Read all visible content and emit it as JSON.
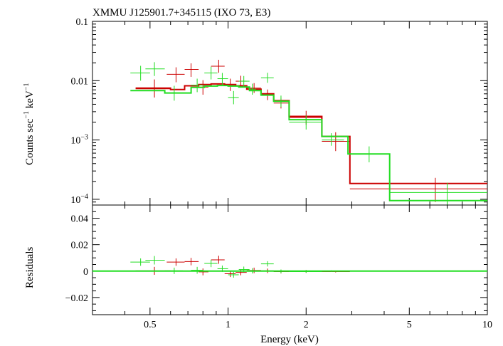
{
  "chart_data": {
    "type": "scatter",
    "title": "XMMU J125901.7+345115 (IXO 73, E3)",
    "x_label": "Energy (keV)",
    "x_scale": "log",
    "x_range": [
      0.3,
      10
    ],
    "x_ticks": [
      {
        "value": 0.5,
        "label": "0.5"
      },
      {
        "value": 1,
        "label": "1"
      },
      {
        "value": 2,
        "label": "2"
      },
      {
        "value": 5,
        "label": "5"
      },
      {
        "value": 10,
        "label": "10"
      }
    ],
    "top_panel": {
      "y_label_main": "Counts sec",
      "y_label_sup1": "−1",
      "y_label_mid": " keV",
      "y_label_sup2": "−1",
      "y_scale": "log",
      "y_range": [
        8e-05,
        0.1
      ],
      "y_ticks": [
        {
          "value": 0.1,
          "label": "0.1"
        },
        {
          "value": 0.01,
          "label": "0.01"
        },
        {
          "value": 0.001,
          "base": "10",
          "exp": "−3"
        },
        {
          "value": 0.0001,
          "base": "10",
          "exp": "−4"
        }
      ]
    },
    "bottom_panel": {
      "y_label": "Residuals",
      "y_scale": "linear",
      "y_range": [
        -0.033,
        0.05
      ],
      "y_ticks": [
        {
          "value": 0.04,
          "label": "0.04"
        },
        {
          "value": 0.02,
          "label": "0.02"
        },
        {
          "value": 0,
          "label": "0"
        },
        {
          "value": -0.02,
          "label": "−0.02"
        }
      ]
    },
    "series": [
      {
        "name": "red",
        "color": "#cc0000",
        "data": [
          {
            "x": 0.52,
            "xlo": 0.44,
            "xhi": 0.6,
            "y": 0.0073,
            "ylo": 0.0052,
            "yhi": 0.0105,
            "res": 0.0002,
            "reslo": -0.0028,
            "reshi": 0.0032
          },
          {
            "x": 0.63,
            "xlo": 0.58,
            "xhi": 0.68,
            "y": 0.0128,
            "ylo": 0.0094,
            "yhi": 0.0168,
            "res": 0.0068,
            "reslo": 0.004,
            "reshi": 0.0096
          },
          {
            "x": 0.72,
            "xlo": 0.68,
            "xhi": 0.77,
            "y": 0.0155,
            "ylo": 0.0116,
            "yhi": 0.0196,
            "res": 0.0072,
            "reslo": 0.0044,
            "reshi": 0.01
          },
          {
            "x": 0.8,
            "xlo": 0.77,
            "xhi": 0.84,
            "y": 0.0078,
            "ylo": 0.0058,
            "yhi": 0.0102,
            "res": -0.0006,
            "reslo": -0.0032,
            "reshi": 0.002
          },
          {
            "x": 0.92,
            "xlo": 0.86,
            "xhi": 0.97,
            "y": 0.0175,
            "ylo": 0.0136,
            "yhi": 0.0225,
            "res": 0.0085,
            "reslo": 0.0055,
            "reshi": 0.0116
          },
          {
            "x": 1.02,
            "xlo": 0.97,
            "xhi": 1.07,
            "y": 0.0085,
            "ylo": 0.0067,
            "yhi": 0.0108,
            "res": -0.002,
            "reslo": -0.0045,
            "reshi": 0.0004
          },
          {
            "x": 1.12,
            "xlo": 1.07,
            "xhi": 1.18,
            "y": 0.0098,
            "ylo": 0.008,
            "yhi": 0.0121,
            "res": -0.001,
            "reslo": -0.0032,
            "reshi": 0.0012
          },
          {
            "x": 1.26,
            "xlo": 1.18,
            "xhi": 1.34,
            "y": 0.0075,
            "ylo": 0.0062,
            "yhi": 0.0091,
            "res": 0.0005,
            "reslo": -0.0016,
            "reshi": 0.0026
          },
          {
            "x": 1.42,
            "xlo": 1.34,
            "xhi": 1.5,
            "y": 0.0058,
            "ylo": 0.0047,
            "yhi": 0.0071,
            "res": 0.0002,
            "reslo": -0.0015,
            "reshi": 0.0019
          },
          {
            "x": 1.6,
            "xlo": 1.5,
            "xhi": 1.72,
            "y": 0.0042,
            "ylo": 0.0034,
            "yhi": 0.0052,
            "res": -0.0004,
            "reslo": -0.0018,
            "reshi": 0.001
          },
          {
            "x": 2.0,
            "xlo": 1.72,
            "xhi": 2.3,
            "y": 0.0024,
            "ylo": 0.0018,
            "yhi": 0.0031,
            "res": -0.0002,
            "reslo": -0.0012,
            "reshi": 0.0008
          },
          {
            "x": 2.6,
            "xlo": 2.3,
            "xhi": 2.95,
            "y": 0.00095,
            "ylo": 0.00065,
            "yhi": 0.00135,
            "res": -0.0004,
            "reslo": -0.001,
            "reshi": 0.0002
          },
          {
            "x": 6.3,
            "xlo": 2.95,
            "xhi": 10.0,
            "y": 0.00015,
            "ylo": 9e-05,
            "yhi": 0.00023,
            "res": 0.0,
            "reslo": -0.0002,
            "reshi": 0.0002
          }
        ],
        "model": [
          {
            "x0": 0.44,
            "x1": 0.6,
            "y": 0.0075
          },
          {
            "x0": 0.6,
            "x1": 0.68,
            "y": 0.0071
          },
          {
            "x0": 0.68,
            "x1": 0.77,
            "y": 0.0082
          },
          {
            "x0": 0.77,
            "x1": 0.86,
            "y": 0.0086
          },
          {
            "x0": 0.86,
            "x1": 0.97,
            "y": 0.0088
          },
          {
            "x0": 0.97,
            "x1": 1.07,
            "y": 0.0086
          },
          {
            "x0": 1.07,
            "x1": 1.18,
            "y": 0.0082
          },
          {
            "x0": 1.18,
            "x1": 1.34,
            "y": 0.0072
          },
          {
            "x0": 1.34,
            "x1": 1.5,
            "y": 0.006
          },
          {
            "x0": 1.5,
            "x1": 1.72,
            "y": 0.0046
          },
          {
            "x0": 1.72,
            "x1": 2.3,
            "y": 0.0025
          },
          {
            "x0": 2.3,
            "x1": 2.95,
            "y": 0.00115
          },
          {
            "x0": 2.95,
            "x1": 10.0,
            "y": 0.000185
          }
        ]
      },
      {
        "name": "green",
        "color": "#22dd22",
        "data": [
          {
            "x": 0.46,
            "xlo": 0.42,
            "xhi": 0.5,
            "y": 0.0135,
            "ylo": 0.01,
            "yhi": 0.0178,
            "res": 0.0068,
            "reslo": 0.004,
            "reshi": 0.0096
          },
          {
            "x": 0.52,
            "xlo": 0.48,
            "xhi": 0.57,
            "y": 0.0158,
            "ylo": 0.012,
            "yhi": 0.0205,
            "res": 0.0082,
            "reslo": 0.005,
            "reshi": 0.0114
          },
          {
            "x": 0.62,
            "xlo": 0.57,
            "xhi": 0.67,
            "y": 0.0062,
            "ylo": 0.0046,
            "yhi": 0.0082,
            "res": 0.0002,
            "reslo": -0.0022,
            "reshi": 0.0026
          },
          {
            "x": 0.76,
            "xlo": 0.72,
            "xhi": 0.8,
            "y": 0.0084,
            "ylo": 0.0064,
            "yhi": 0.0108,
            "res": 0.0006,
            "reslo": -0.002,
            "reshi": 0.0032
          },
          {
            "x": 0.86,
            "xlo": 0.81,
            "xhi": 0.91,
            "y": 0.0135,
            "ylo": 0.0105,
            "yhi": 0.0172,
            "res": 0.0058,
            "reslo": 0.003,
            "reshi": 0.0086
          },
          {
            "x": 0.95,
            "xlo": 0.91,
            "xhi": 1.0,
            "y": 0.0108,
            "ylo": 0.0085,
            "yhi": 0.0135,
            "res": 0.0018,
            "reslo": -0.0006,
            "reshi": 0.0042
          },
          {
            "x": 1.05,
            "xlo": 1.0,
            "xhi": 1.1,
            "y": 0.0052,
            "ylo": 0.004,
            "yhi": 0.0067,
            "res": -0.0028,
            "reslo": -0.005,
            "reshi": -0.0006
          },
          {
            "x": 1.15,
            "xlo": 1.1,
            "xhi": 1.21,
            "y": 0.0098,
            "ylo": 0.008,
            "yhi": 0.012,
            "res": 0.0012,
            "reslo": -0.001,
            "reshi": 0.0034
          },
          {
            "x": 1.24,
            "xlo": 1.2,
            "xhi": 1.28,
            "y": 0.0072,
            "ylo": 0.0058,
            "yhi": 0.0089,
            "res": 0.0002,
            "reslo": -0.0018,
            "reshi": 0.0022
          },
          {
            "x": 1.42,
            "xlo": 1.34,
            "xhi": 1.5,
            "y": 0.0112,
            "ylo": 0.0092,
            "yhi": 0.0136,
            "res": 0.0055,
            "reslo": 0.0035,
            "reshi": 0.0075
          },
          {
            "x": 1.6,
            "xlo": 1.5,
            "xhi": 1.72,
            "y": 0.0045,
            "ylo": 0.0036,
            "yhi": 0.0056,
            "res": -0.0002,
            "reslo": -0.0016,
            "reshi": 0.0012
          },
          {
            "x": 2.0,
            "xlo": 1.72,
            "xhi": 2.3,
            "y": 0.002,
            "ylo": 0.0015,
            "yhi": 0.0026,
            "res": -0.0004,
            "reslo": -0.0014,
            "reshi": 0.0006
          },
          {
            "x": 2.5,
            "xlo": 2.3,
            "xhi": 2.8,
            "y": 0.001,
            "ylo": 0.0008,
            "yhi": 0.0013,
            "res": 0.0,
            "reslo": -0.0006,
            "reshi": 0.0006
          },
          {
            "x": 3.5,
            "xlo": 2.9,
            "xhi": 4.2,
            "y": 0.00058,
            "ylo": 0.00042,
            "yhi": 0.00078,
            "res": 0.0,
            "reslo": -0.0004,
            "reshi": 0.0004
          },
          {
            "x": 7.0,
            "xlo": 4.2,
            "xhi": 10.0,
            "y": 0.00013,
            "ylo": 8e-05,
            "yhi": 0.00019,
            "res": 0.0,
            "reslo": -0.0002,
            "reshi": 0.0002
          }
        ],
        "model": [
          {
            "x0": 0.42,
            "x1": 0.57,
            "y": 0.0068
          },
          {
            "x0": 0.57,
            "x1": 0.72,
            "y": 0.0062
          },
          {
            "x0": 0.72,
            "x1": 0.81,
            "y": 0.0077
          },
          {
            "x0": 0.81,
            "x1": 0.91,
            "y": 0.0081
          },
          {
            "x0": 0.91,
            "x1": 1.0,
            "y": 0.0083
          },
          {
            "x0": 1.0,
            "x1": 1.1,
            "y": 0.0081
          },
          {
            "x0": 1.1,
            "x1": 1.21,
            "y": 0.0078
          },
          {
            "x0": 1.21,
            "x1": 1.34,
            "y": 0.0068
          },
          {
            "x0": 1.34,
            "x1": 1.5,
            "y": 0.0057
          },
          {
            "x0": 1.5,
            "x1": 1.72,
            "y": 0.0045
          },
          {
            "x0": 1.72,
            "x1": 2.3,
            "y": 0.0022
          },
          {
            "x0": 2.3,
            "x1": 2.9,
            "y": 0.00115
          },
          {
            "x0": 2.9,
            "x1": 4.2,
            "y": 0.00058
          },
          {
            "x0": 4.2,
            "x1": 10.0,
            "y": 9.5e-05
          }
        ]
      }
    ]
  }
}
